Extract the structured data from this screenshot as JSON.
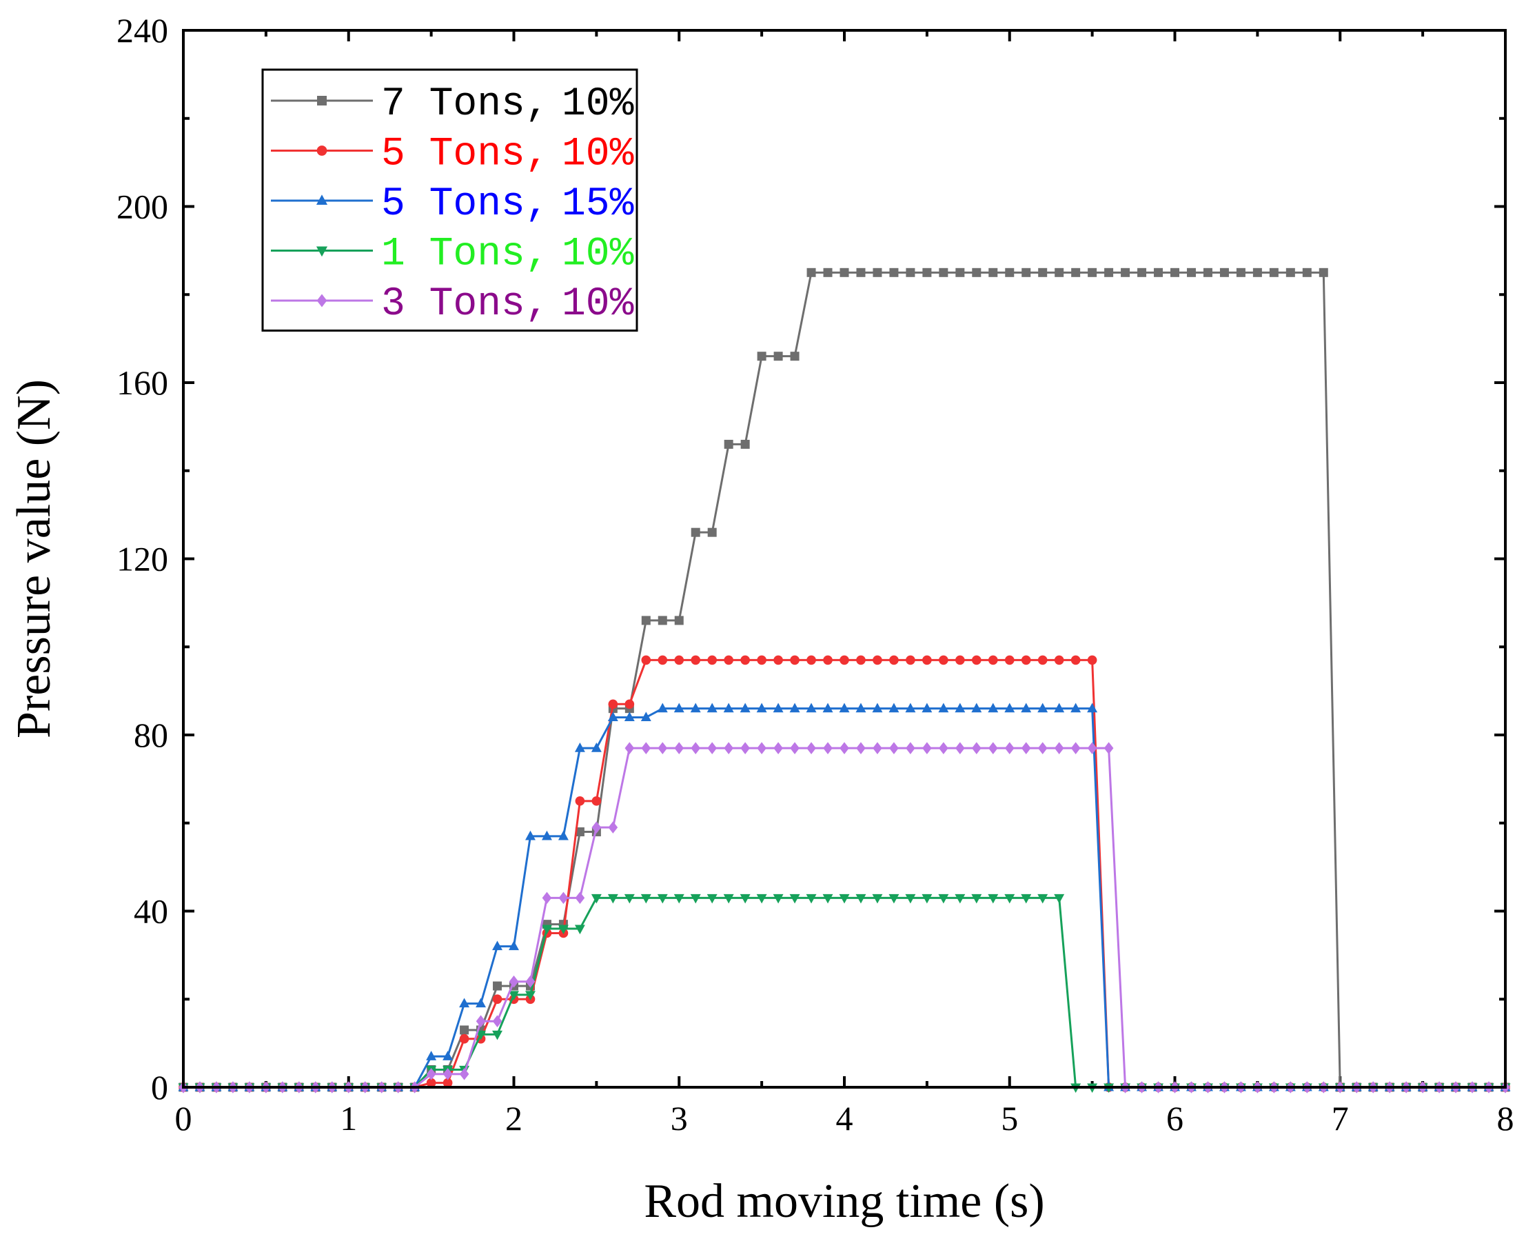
{
  "chart_data": {
    "type": "line",
    "title": "",
    "xlabel": "Rod moving time (s)",
    "ylabel": "Pressure value (N)",
    "xlim": [
      0,
      8
    ],
    "ylim": [
      0,
      240
    ],
    "xticks": [
      "0",
      "1",
      "2",
      "3",
      "4",
      "5",
      "6",
      "7",
      "8"
    ],
    "yticks": [
      "0",
      "40",
      "80",
      "120",
      "160",
      "200",
      "240"
    ],
    "legend_position": "top-left",
    "x": [
      0,
      0.1,
      0.2,
      0.3,
      0.4,
      0.5,
      0.6,
      0.7,
      0.8,
      0.9,
      1.0,
      1.1,
      1.2,
      1.3,
      1.4,
      1.5,
      1.6,
      1.7,
      1.8,
      1.9,
      2.0,
      2.1,
      2.2,
      2.3,
      2.4,
      2.5,
      2.6,
      2.7,
      2.8,
      2.9,
      3.0,
      3.1,
      3.2,
      3.3,
      3.4,
      3.5,
      3.6,
      3.7,
      3.8,
      3.9,
      4.0,
      4.1,
      4.2,
      4.3,
      4.4,
      4.5,
      4.6,
      4.7,
      4.8,
      4.9,
      5.0,
      5.1,
      5.2,
      5.3,
      5.4,
      5.5,
      5.6,
      5.7,
      5.8,
      5.9,
      6.0,
      6.1,
      6.2,
      6.3,
      6.4,
      6.5,
      6.6,
      6.7,
      6.8,
      6.9,
      7.0,
      7.1,
      7.2,
      7.3,
      7.4,
      7.5,
      7.6,
      7.7,
      7.8,
      7.9,
      8.0
    ],
    "series": [
      {
        "name": "7 Tons,  10%",
        "legend_label": "7 Tons, 10%",
        "color": "#6e6e6e",
        "label_color": "#000000",
        "marker": "square",
        "values": [
          0,
          0,
          0,
          0,
          0,
          0,
          0,
          0,
          0,
          0,
          0,
          0,
          0,
          0,
          0,
          4,
          4,
          13,
          13,
          23,
          23,
          23,
          37,
          37,
          58,
          58,
          86,
          86,
          106,
          106,
          106,
          126,
          126,
          146,
          146,
          166,
          166,
          166,
          185,
          185,
          185,
          185,
          185,
          185,
          185,
          185,
          185,
          185,
          185,
          185,
          185,
          185,
          185,
          185,
          185,
          185,
          185,
          185,
          185,
          185,
          185,
          185,
          185,
          185,
          185,
          185,
          185,
          185,
          185,
          185,
          0,
          0,
          0,
          0,
          0,
          0,
          0,
          0,
          0,
          0,
          0
        ]
      },
      {
        "name": "5 Tons,  10%",
        "legend_label": "5 Tons, 10%",
        "color": "#f03232",
        "label_color": "#ff0000",
        "marker": "circle",
        "values": [
          0,
          0,
          0,
          0,
          0,
          0,
          0,
          0,
          0,
          0,
          0,
          0,
          0,
          0,
          0,
          1,
          1,
          11,
          11,
          20,
          20,
          20,
          35,
          35,
          65,
          65,
          87,
          87,
          97,
          97,
          97,
          97,
          97,
          97,
          97,
          97,
          97,
          97,
          97,
          97,
          97,
          97,
          97,
          97,
          97,
          97,
          97,
          97,
          97,
          97,
          97,
          97,
          97,
          97,
          97,
          97,
          0,
          0,
          0,
          0,
          0,
          0,
          0,
          0,
          0,
          0,
          0,
          0,
          0,
          0,
          0,
          0,
          0,
          0,
          0,
          0,
          0,
          0,
          0,
          0,
          0
        ]
      },
      {
        "name": "5 Tons,  15%",
        "legend_label": "5 Tons, 15%",
        "color": "#1f6fcf",
        "label_color": "#0000ff",
        "marker": "triangle-up",
        "values": [
          0,
          0,
          0,
          0,
          0,
          0,
          0,
          0,
          0,
          0,
          0,
          0,
          0,
          0,
          0,
          7,
          7,
          19,
          19,
          32,
          32,
          57,
          57,
          57,
          77,
          77,
          84,
          84,
          84,
          86,
          86,
          86,
          86,
          86,
          86,
          86,
          86,
          86,
          86,
          86,
          86,
          86,
          86,
          86,
          86,
          86,
          86,
          86,
          86,
          86,
          86,
          86,
          86,
          86,
          86,
          86,
          0,
          0,
          0,
          0,
          0,
          0,
          0,
          0,
          0,
          0,
          0,
          0,
          0,
          0,
          0,
          0,
          0,
          0,
          0,
          0,
          0,
          0,
          0,
          0,
          0
        ]
      },
      {
        "name": "1 Tons,  10%",
        "legend_label": "1 Tons, 10%",
        "color": "#16a15a",
        "label_color": "#22ee22",
        "marker": "triangle-down",
        "values": [
          0,
          0,
          0,
          0,
          0,
          0,
          0,
          0,
          0,
          0,
          0,
          0,
          0,
          0,
          0,
          4,
          4,
          4,
          12,
          12,
          21,
          21,
          36,
          36,
          36,
          43,
          43,
          43,
          43,
          43,
          43,
          43,
          43,
          43,
          43,
          43,
          43,
          43,
          43,
          43,
          43,
          43,
          43,
          43,
          43,
          43,
          43,
          43,
          43,
          43,
          43,
          43,
          43,
          43,
          0,
          0,
          0,
          0,
          0,
          0,
          0,
          0,
          0,
          0,
          0,
          0,
          0,
          0,
          0,
          0,
          0,
          0,
          0,
          0,
          0,
          0,
          0,
          0,
          0,
          0,
          0
        ]
      },
      {
        "name": "3 Tons,  10%",
        "legend_label": "3 Tons, 10%",
        "color": "#bd77e6",
        "label_color": "#8b0a8b",
        "marker": "diamond",
        "values": [
          0,
          0,
          0,
          0,
          0,
          0,
          0,
          0,
          0,
          0,
          0,
          0,
          0,
          0,
          0,
          3,
          3,
          3,
          15,
          15,
          24,
          24,
          43,
          43,
          43,
          59,
          59,
          77,
          77,
          77,
          77,
          77,
          77,
          77,
          77,
          77,
          77,
          77,
          77,
          77,
          77,
          77,
          77,
          77,
          77,
          77,
          77,
          77,
          77,
          77,
          77,
          77,
          77,
          77,
          77,
          77,
          77,
          0,
          0,
          0,
          0,
          0,
          0,
          0,
          0,
          0,
          0,
          0,
          0,
          0,
          0,
          0,
          0,
          0,
          0,
          0,
          0,
          0,
          0,
          0,
          0
        ]
      }
    ]
  }
}
